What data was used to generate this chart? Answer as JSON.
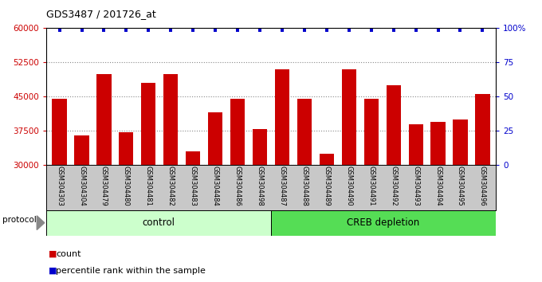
{
  "title": "GDS3487 / 201726_at",
  "samples": [
    "GSM304303",
    "GSM304304",
    "GSM304479",
    "GSM304480",
    "GSM304481",
    "GSM304482",
    "GSM304483",
    "GSM304484",
    "GSM304486",
    "GSM304498",
    "GSM304487",
    "GSM304488",
    "GSM304489",
    "GSM304490",
    "GSM304491",
    "GSM304492",
    "GSM304493",
    "GSM304494",
    "GSM304495",
    "GSM304496"
  ],
  "counts": [
    44500,
    36500,
    50000,
    37200,
    48000,
    50000,
    33000,
    41500,
    44500,
    37800,
    51000,
    44500,
    32500,
    51000,
    44500,
    47500,
    39000,
    39500,
    40000,
    45500
  ],
  "control_count": 10,
  "creb_count": 10,
  "bar_color": "#cc0000",
  "dot_color": "#0000cc",
  "ylim_left": [
    30000,
    60000
  ],
  "ylim_right": [
    0,
    100
  ],
  "yticks_left": [
    30000,
    37500,
    45000,
    52500,
    60000
  ],
  "yticks_right": [
    0,
    25,
    50,
    75,
    100
  ],
  "ytick_labels_left": [
    "30000",
    "37500",
    "45000",
    "52500",
    "60000"
  ],
  "ytick_labels_right": [
    "0",
    "25",
    "50",
    "75",
    "100%"
  ],
  "control_label": "control",
  "creb_label": "CREB depletion",
  "protocol_label": "protocol",
  "legend_count_label": "count",
  "legend_pct_label": "percentile rank within the sample",
  "plot_bg": "#ffffff",
  "grid_color": "#888888",
  "label_area_bg": "#c8c8c8",
  "control_bg": "#ccffcc",
  "creb_bg": "#55dd55",
  "title_fontsize": 9,
  "tick_fontsize": 7.5,
  "sample_fontsize": 6,
  "legend_fontsize": 8
}
